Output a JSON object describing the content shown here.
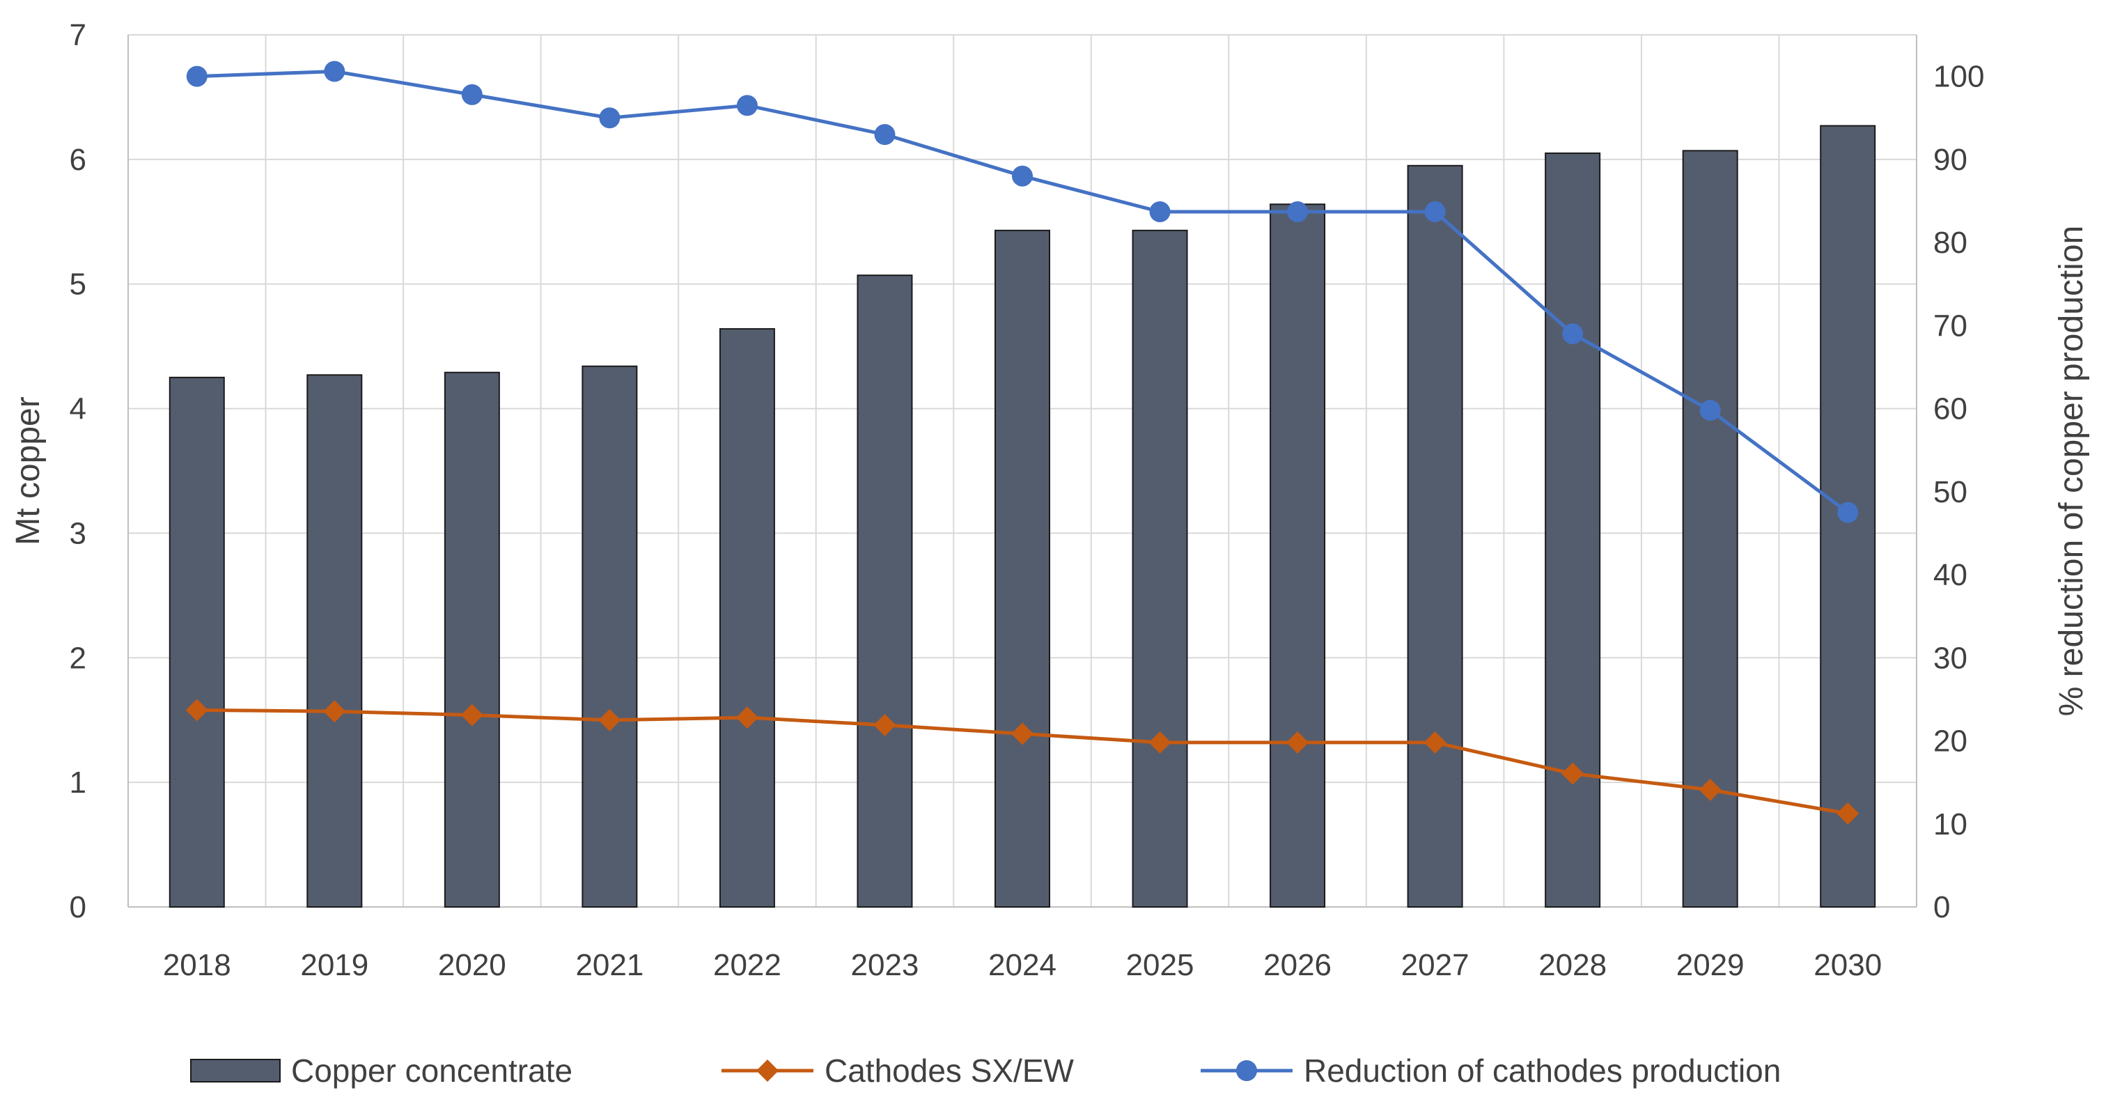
{
  "chart_data": {
    "type": "bar",
    "title": "",
    "categories": [
      "2018",
      "2019",
      "2020",
      "2021",
      "2022",
      "2023",
      "2024",
      "2025",
      "2026",
      "2027",
      "2028",
      "2029",
      "2030"
    ],
    "ylabel": "Mt copper",
    "y2label": "% reduction of copper production",
    "ylim": [
      0,
      7
    ],
    "yticks": [
      0,
      1,
      2,
      3,
      4,
      5,
      6,
      7
    ],
    "y2lim": [
      0,
      105
    ],
    "y2ticks": [
      0,
      10,
      20,
      30,
      40,
      50,
      60,
      70,
      80,
      90,
      100
    ],
    "grid": true,
    "legend_position": "bottom",
    "series": [
      {
        "name": "Copper concentrate",
        "type": "bar",
        "axis": "left",
        "color": "#545d6e",
        "values": [
          4.25,
          4.27,
          4.29,
          4.34,
          4.64,
          5.07,
          5.43,
          5.43,
          5.64,
          5.95,
          6.05,
          6.07,
          6.27
        ]
      },
      {
        "name": "Cathodes SX/EW",
        "type": "line",
        "marker": "diamond",
        "axis": "left",
        "color": "#c55a11",
        "values": [
          1.58,
          1.57,
          1.54,
          1.5,
          1.52,
          1.46,
          1.39,
          1.32,
          1.32,
          1.32,
          1.07,
          0.94,
          0.75
        ]
      },
      {
        "name": "Reduction of cathodes production",
        "type": "line",
        "marker": "circle",
        "axis": "right",
        "color": "#4472c4",
        "values": [
          100,
          100.6,
          97.8,
          95,
          96.5,
          93,
          88,
          83.7,
          83.7,
          83.7,
          69,
          59.8,
          47.5
        ]
      }
    ]
  }
}
